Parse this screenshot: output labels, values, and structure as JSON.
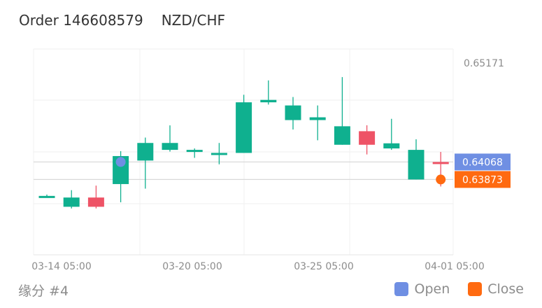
{
  "header": {
    "order_label": "Order 146608579",
    "pair": "NZD/CHF"
  },
  "footer": {
    "account_label": "缘分 #4"
  },
  "legend": {
    "open_label": "Open",
    "close_label": "Close",
    "open_color": "#6f8fe3",
    "close_color": "#ff6a10"
  },
  "chart_data": {
    "type": "candlestick",
    "title": "",
    "x_tick_labels": [
      "03-14 05:00",
      "03-20 05:00",
      "03-25 05:00",
      "04-01 05:00"
    ],
    "y_tick_labels": [
      "0.65171"
    ],
    "up_color": "#0fb08f",
    "down_color": "#ee5366",
    "candles": [
      {
        "open": 0.63685,
        "high": 0.63705,
        "low": 0.63672,
        "close": 0.6369
      },
      {
        "open": 0.63569,
        "high": 0.63754,
        "low": 0.6355,
        "close": 0.63672
      },
      {
        "open": 0.63672,
        "high": 0.63805,
        "low": 0.6355,
        "close": 0.63569
      },
      {
        "open": 0.63822,
        "high": 0.64189,
        "low": 0.63619,
        "close": 0.64134
      },
      {
        "open": 0.64084,
        "high": 0.6434,
        "low": 0.63771,
        "close": 0.6428
      },
      {
        "open": 0.64203,
        "high": 0.64476,
        "low": 0.64184,
        "close": 0.6428
      },
      {
        "open": 0.64184,
        "high": 0.64219,
        "low": 0.64114,
        "close": 0.64203
      },
      {
        "open": 0.64152,
        "high": 0.6428,
        "low": 0.64042,
        "close": 0.64169
      },
      {
        "open": 0.64169,
        "high": 0.64817,
        "low": 0.64169,
        "close": 0.64733
      },
      {
        "open": 0.64733,
        "high": 0.64977,
        "low": 0.64708,
        "close": 0.6476
      },
      {
        "open": 0.64535,
        "high": 0.64792,
        "low": 0.6443,
        "close": 0.64698
      },
      {
        "open": 0.64535,
        "high": 0.64698,
        "low": 0.6431,
        "close": 0.64566
      },
      {
        "open": 0.6426,
        "high": 0.65014,
        "low": 0.6426,
        "close": 0.64466
      },
      {
        "open": 0.64411,
        "high": 0.64477,
        "low": 0.64152,
        "close": 0.6426
      },
      {
        "open": 0.64219,
        "high": 0.64549,
        "low": 0.64203,
        "close": 0.64276
      },
      {
        "open": 0.63873,
        "high": 0.64321,
        "low": 0.63873,
        "close": 0.64203
      },
      {
        "open": 0.64068,
        "high": 0.6418,
        "low": 0.63795,
        "close": 0.6405
      }
    ],
    "open_marker": {
      "candle_index": 3,
      "price": 0.64068,
      "label": "0.64068"
    },
    "close_marker": {
      "candle_index": 16,
      "price": 0.63873,
      "label": "0.63873"
    }
  }
}
